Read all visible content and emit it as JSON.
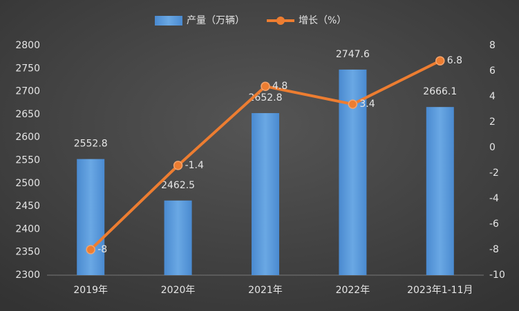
{
  "chart_data": {
    "type": "bar",
    "categories": [
      "2019年",
      "2020年",
      "2021年",
      "2022年",
      "2023年1-11月"
    ],
    "series": [
      {
        "name": "产量（万辆）",
        "type": "bar",
        "color": "#5b9bd5",
        "values": [
          2552.8,
          2462.5,
          2652.8,
          2747.6,
          2666.1
        ]
      },
      {
        "name": "增长（%）",
        "type": "line",
        "axis": "y2",
        "color": "#ed7d31",
        "values": [
          -8,
          -1.4,
          4.8,
          3.4,
          6.8
        ]
      }
    ],
    "ylim": [
      2300,
      2800
    ],
    "yticks": [
      2300,
      2350,
      2400,
      2450,
      2500,
      2550,
      2600,
      2650,
      2700,
      2750,
      2800
    ],
    "y2lim": [
      -10,
      8
    ],
    "y2ticks": [
      -10,
      -8,
      -6,
      -4,
      -2,
      0,
      2,
      4,
      6,
      8
    ],
    "grid": false
  }
}
